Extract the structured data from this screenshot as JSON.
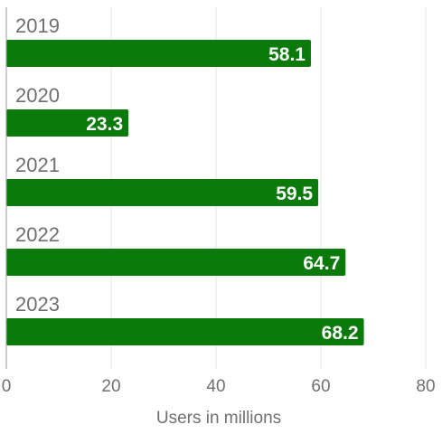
{
  "chart_data": {
    "type": "bar",
    "orientation": "horizontal",
    "categories": [
      "2019",
      "2020",
      "2021",
      "2022",
      "2023"
    ],
    "values": [
      58.1,
      23.3,
      59.5,
      64.7,
      68.2
    ],
    "value_labels": [
      "58.1",
      "23.3",
      "59.5",
      "64.7",
      "68.2"
    ],
    "title": "",
    "xlabel": "Users in millions",
    "ylabel": "",
    "xlim": [
      0,
      80
    ],
    "xticks": [
      "0",
      "20",
      "40",
      "60",
      "80"
    ],
    "grid": "vertical",
    "legend": "none",
    "colors": {
      "bar": "#0a7a0a",
      "value_label": "#ffffff",
      "text": "#707070",
      "grid": "#e6e6e6"
    }
  }
}
